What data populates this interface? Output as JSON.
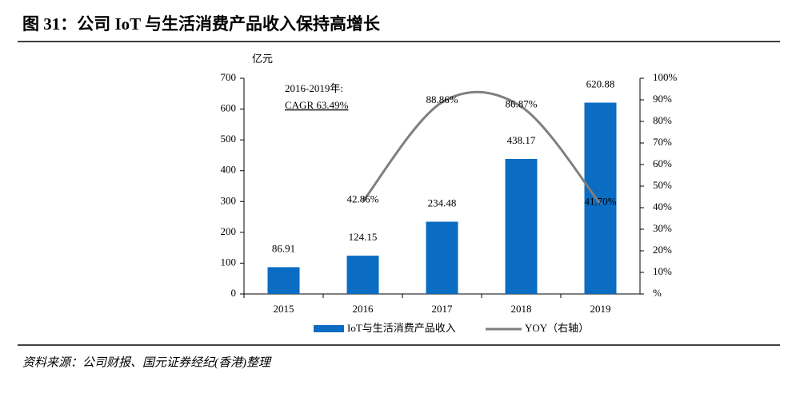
{
  "chart_data": {
    "type": "bar-line",
    "title": "图 31：公司 IoT 与生活消费产品收入保持高增长",
    "y_label": "亿元",
    "annotation": [
      "2016-2019年:",
      "CAGR 63.49%"
    ],
    "source": "资料来源：公司财报、国元证券经纪(香港)整理",
    "categories": [
      "2015",
      "2016",
      "2017",
      "2018",
      "2019"
    ],
    "series": [
      {
        "name": "IoT与生活消费产品收入",
        "type": "bar",
        "color": "#0a6cc2",
        "values": [
          86.91,
          124.15,
          234.48,
          438.17,
          620.88
        ]
      },
      {
        "name": "YOY（右轴）",
        "type": "line",
        "axis": "y2",
        "color": "#7f7f7f",
        "values": [
          null,
          42.86,
          88.86,
          86.87,
          41.7
        ],
        "value_labels": [
          null,
          "42.86%",
          "88.86%",
          "86.87%",
          "41.70%"
        ]
      }
    ],
    "ylim": [
      0,
      700
    ],
    "yticks": [
      0,
      100,
      200,
      300,
      400,
      500,
      600,
      700
    ],
    "y2lim": [
      0,
      100
    ],
    "y2ticks": [
      {
        "value": 0,
        "label": "%"
      },
      {
        "value": 10,
        "label": "10%"
      },
      {
        "value": 20,
        "label": "20%"
      },
      {
        "value": 30,
        "label": "30%"
      },
      {
        "value": 40,
        "label": "40%"
      },
      {
        "value": 50,
        "label": "50%"
      },
      {
        "value": 60,
        "label": "60%"
      },
      {
        "value": 70,
        "label": "70%"
      },
      {
        "value": 80,
        "label": "80%"
      },
      {
        "value": 90,
        "label": "90%"
      },
      {
        "value": 100,
        "label": "100%"
      }
    ],
    "legend": "bottom"
  }
}
